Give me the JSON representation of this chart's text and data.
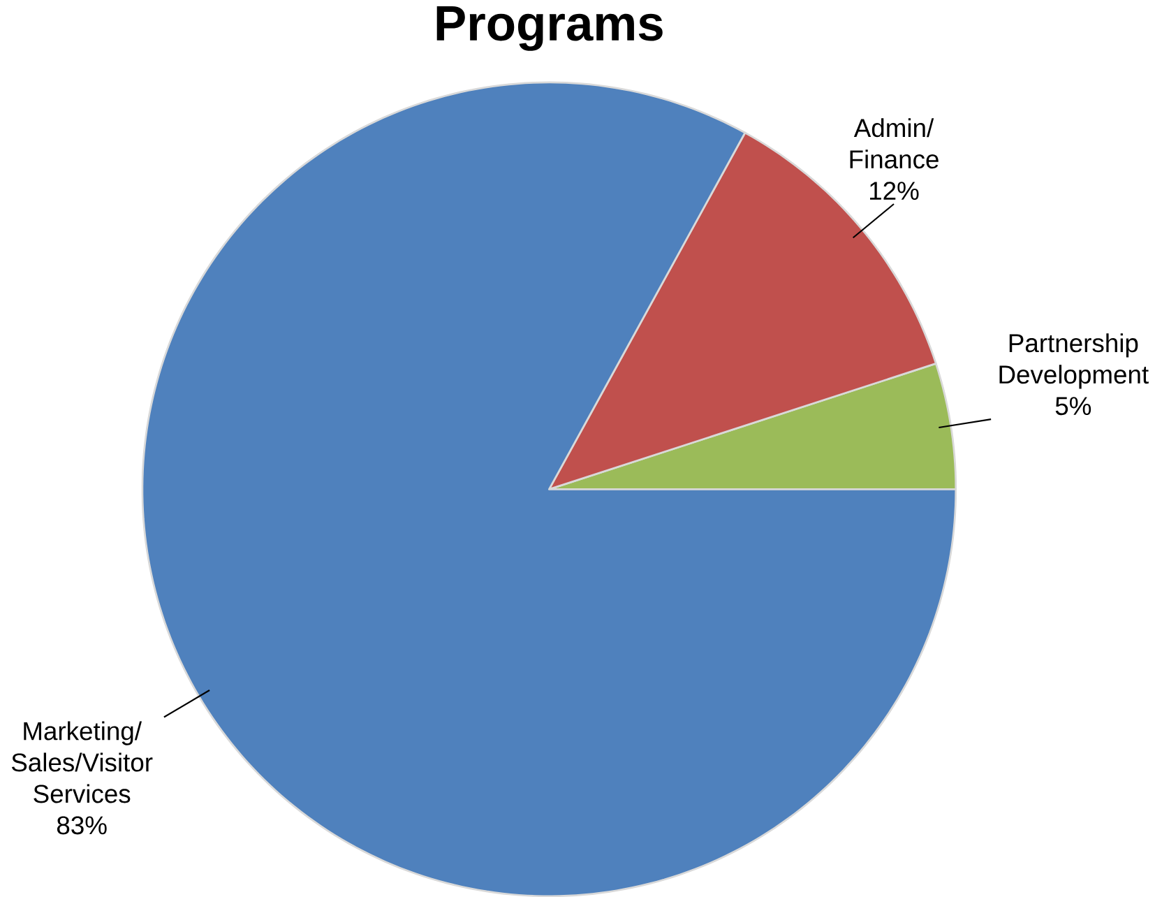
{
  "chart_data": {
    "type": "pie",
    "title": "Programs",
    "categories": [
      "Partnership Development",
      "Admin/ Finance",
      "Marketing/ Sales/Visitor Services"
    ],
    "values": [
      5,
      12,
      83
    ],
    "value_labels": [
      "5%",
      "12%",
      "83%"
    ],
    "colors": [
      "#9bbb59",
      "#c0504d",
      "#4f81bd"
    ]
  }
}
